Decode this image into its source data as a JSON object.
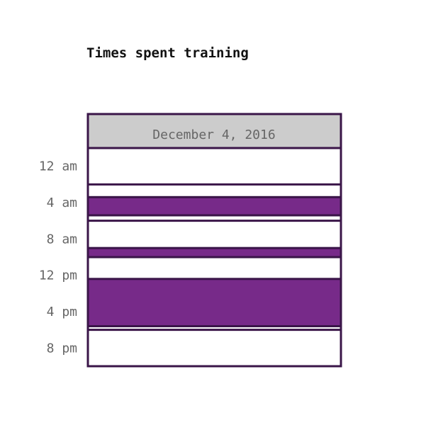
{
  "chart_data": {
    "type": "heatmap",
    "title": "Times spent training",
    "column_header": "December 4, 2016",
    "y_axis": {
      "range_hours": [
        0,
        24
      ],
      "ticks": [
        {
          "hour": 0,
          "label": "12 am"
        },
        {
          "hour": 4,
          "label": "4 am"
        },
        {
          "hour": 8,
          "label": "8 am"
        },
        {
          "hour": 12,
          "label": "12 pm"
        },
        {
          "hour": 16,
          "label": "4 pm"
        },
        {
          "hour": 20,
          "label": "8 pm"
        }
      ]
    },
    "training_sessions": [
      {
        "start_hour": 5.4,
        "end_hour": 7.4
      },
      {
        "start_hour": 11.0,
        "end_hour": 12.0
      },
      {
        "start_hour": 14.4,
        "end_hour": 19.6
      }
    ],
    "colors": {
      "session_fill": "#772a89",
      "border": "#3a1548",
      "header_fill": "#cccccc",
      "background": "#ffffff"
    }
  }
}
